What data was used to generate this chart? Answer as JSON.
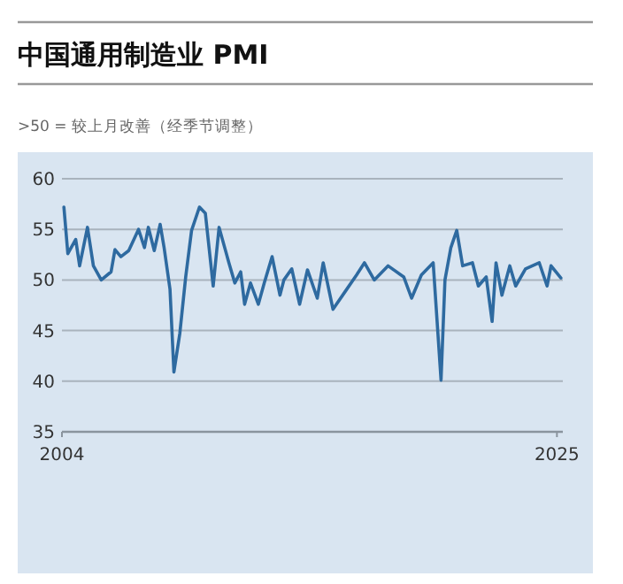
{
  "chart_data": {
    "type": "line",
    "title": "中国通用制造业 PMI",
    "subtitle": ">50 = 较上月改善（经季节调整）",
    "x": [
      "2004-02",
      "2004-04",
      "2004-08",
      "2004-10",
      "2005-02",
      "2005-05",
      "2005-09",
      "2006-02",
      "2006-04",
      "2006-07",
      "2006-11",
      "2007-04",
      "2007-07",
      "2007-09",
      "2007-12",
      "2008-03",
      "2008-05",
      "2008-08",
      "2008-10",
      "2009-01",
      "2009-04",
      "2009-07",
      "2009-11",
      "2010-02",
      "2010-06",
      "2010-09",
      "2011-02",
      "2011-05",
      "2011-08",
      "2011-10",
      "2012-01",
      "2012-05",
      "2012-08",
      "2012-12",
      "2013-04",
      "2013-06",
      "2013-10",
      "2014-02",
      "2014-06",
      "2014-11",
      "2015-02",
      "2015-07",
      "2016-01",
      "2016-07",
      "2016-11",
      "2017-04",
      "2017-11",
      "2018-07",
      "2018-11",
      "2019-04",
      "2019-10",
      "2020-02",
      "2020-04",
      "2020-07",
      "2020-10",
      "2021-01",
      "2021-06",
      "2021-09",
      "2022-01",
      "2022-04",
      "2022-06",
      "2022-09",
      "2023-01",
      "2023-04",
      "2023-09",
      "2024-04",
      "2024-08",
      "2024-10",
      "2025-03"
    ],
    "values": [
      57.2,
      52.6,
      54.0,
      51.4,
      55.2,
      51.4,
      50.0,
      50.8,
      53.0,
      52.3,
      52.9,
      55.0,
      53.2,
      55.2,
      52.9,
      55.5,
      53.2,
      49.1,
      40.9,
      44.7,
      50.3,
      54.9,
      57.2,
      56.6,
      49.4,
      55.2,
      51.7,
      49.7,
      50.8,
      47.6,
      49.7,
      47.6,
      49.7,
      52.3,
      48.5,
      50.0,
      51.1,
      47.6,
      51.0,
      48.2,
      51.7,
      47.1,
      48.8,
      50.5,
      51.7,
      50.0,
      51.4,
      50.3,
      48.2,
      50.5,
      51.7,
      40.1,
      50.0,
      53.2,
      54.9,
      51.4,
      51.7,
      49.4,
      50.3,
      45.9,
      51.7,
      48.5,
      51.4,
      49.4,
      51.1,
      51.7,
      49.4,
      51.4,
      50.2
    ],
    "color": "#2e6aa0",
    "xlim": [
      "2004-01",
      "2025-04"
    ],
    "xticks": [
      {
        "value": "2004-01",
        "label": "2004"
      },
      {
        "value": "2025-01",
        "label": "2025"
      }
    ],
    "ylim": [
      35,
      60
    ],
    "yticks": [
      35,
      40,
      45,
      50,
      55,
      60
    ],
    "grid": "y"
  }
}
